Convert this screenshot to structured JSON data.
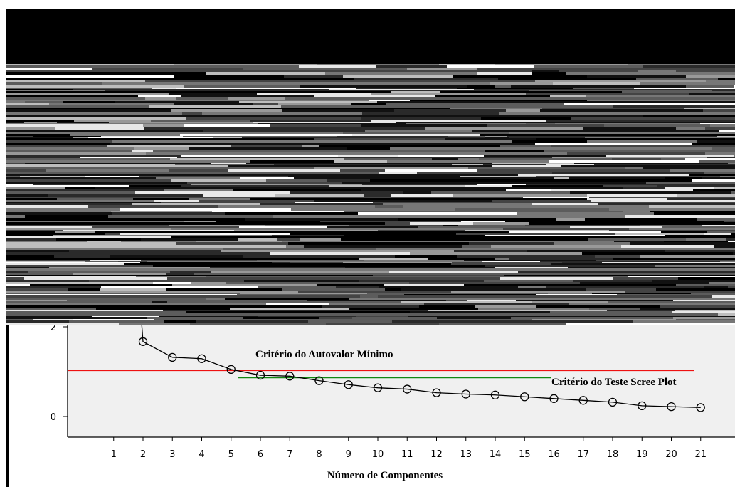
{
  "chart_data": {
    "type": "line",
    "xlabel": "Número de Componentes",
    "ylabel": "",
    "x": [
      1,
      2,
      3,
      4,
      5,
      6,
      7,
      8,
      9,
      10,
      11,
      12,
      13,
      14,
      15,
      16,
      17,
      18,
      19,
      20,
      21
    ],
    "xticks": [
      1,
      2,
      3,
      4,
      5,
      6,
      7,
      8,
      9,
      10,
      11,
      12,
      13,
      14,
      15,
      16,
      17,
      18,
      19,
      20,
      21
    ],
    "yticks": [
      0,
      2
    ],
    "series": [
      {
        "values": [
          null,
          1.67,
          1.32,
          1.29,
          1.05,
          0.92,
          0.9,
          0.8,
          0.71,
          0.64,
          0.61,
          0.53,
          0.5,
          0.48,
          0.44,
          0.4,
          0.36,
          0.32,
          0.24,
          0.22,
          0.2
        ]
      }
    ],
    "markers": "open-circle",
    "xlim": [
      0,
      22
    ],
    "ylim": [
      -0.45,
      2.05
    ],
    "grid": false,
    "annotations": [
      {
        "text": "Critério do Autovalor Mínimo",
        "line": "eigenvalue = 1",
        "color": "#ee1111"
      },
      {
        "text": "Critério do Teste Scree Plot",
        "line": "scree cut-off",
        "color": "#118811"
      }
    ],
    "obscured_region": "noise band covering the upper part of the image"
  }
}
